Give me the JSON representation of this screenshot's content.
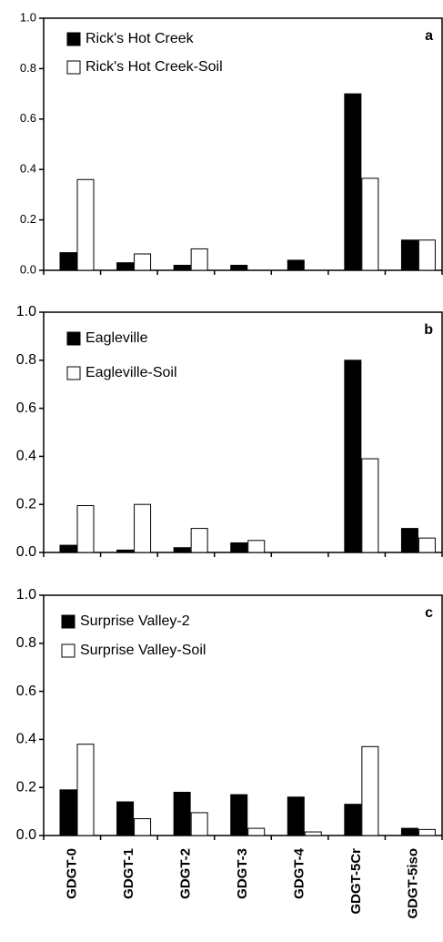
{
  "chart_data": [
    {
      "type": "bar",
      "annotation": "a",
      "series": [
        {
          "name": "Rick's Hot Creek",
          "color": "#000000",
          "values": [
            0.07,
            0.03,
            0.02,
            0.02,
            0.04,
            0.7,
            0.12
          ]
        },
        {
          "name": "Rick's Hot Creek-Soil",
          "color": "#ffffff",
          "values": [
            0.36,
            0.065,
            0.085,
            0,
            0,
            0.365,
            0.12
          ]
        }
      ],
      "ylim": [
        0,
        1
      ],
      "yticks": [
        {
          "value": 0,
          "label": "0.0"
        },
        0.2,
        0.4,
        0.6,
        0.8,
        {
          "value": 1,
          "label": "1.0"
        }
      ]
    },
    {
      "type": "bar",
      "annotation": "b",
      "series": [
        {
          "name": "Eagleville",
          "color": "#000000",
          "values": [
            0.03,
            0.01,
            0.02,
            0.04,
            0,
            0.8,
            0.1
          ]
        },
        {
          "name": "Eagleville-Soil",
          "color": "#ffffff",
          "values": [
            0.195,
            0.2,
            0.1,
            0.05,
            0,
            0.39,
            0.06
          ]
        }
      ],
      "ylim": [
        0,
        1
      ],
      "yticks": [
        {
          "value": 0,
          "label": "0.0"
        },
        0.2,
        0.4,
        0.6,
        0.8,
        {
          "value": 1,
          "label": "1.0"
        }
      ]
    },
    {
      "type": "bar",
      "annotation": "c",
      "categories": [
        "GDGT-0",
        "GDGT-1",
        "GDGT-2",
        "GDGT-3",
        "GDGT-4",
        "GDGT-5Cr",
        "GDGT-5iso"
      ],
      "series": [
        {
          "name": "Surprise Valley-2",
          "color": "#000000",
          "values": [
            0.19,
            0.14,
            0.18,
            0.17,
            0.16,
            0.13,
            0.03
          ]
        },
        {
          "name": "Surprise Valley-Soil",
          "color": "#ffffff",
          "values": [
            0.38,
            0.07,
            0.095,
            0.03,
            0.015,
            0.37,
            0.025
          ]
        }
      ],
      "ylim": [
        0,
        1
      ],
      "yticks": [
        {
          "value": 0,
          "label": "0.0"
        },
        0.2,
        0.4,
        0.6,
        0.8,
        {
          "value": 1,
          "label": "1.0"
        }
      ]
    }
  ]
}
